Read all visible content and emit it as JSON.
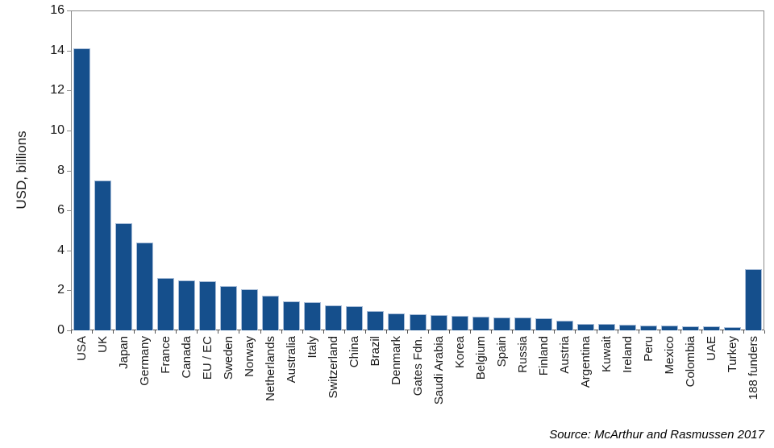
{
  "chart_data": {
    "type": "bar",
    "title": "",
    "xlabel": "",
    "ylabel": "USD, billions",
    "ylim": [
      0,
      16
    ],
    "yticks": [
      16,
      14,
      12,
      10,
      8,
      6,
      4,
      2,
      0
    ],
    "grid": false,
    "legend": "none",
    "bar_color": "#154f8c",
    "bar_edge_color": "#a8bdd8",
    "axis_color": "#8a8a8a",
    "categories": [
      "USA",
      "UK",
      "Japan",
      "Germany",
      "France",
      "Canada",
      "EU / EC",
      "Sweden",
      "Norway",
      "Netherlands",
      "Australia",
      "Italy",
      "Switzerland",
      "China",
      "Brazil",
      "Denmark",
      "Gates Fdn.",
      "Saudi Arabia",
      "Korea",
      "Belgium",
      "Spain",
      "Russia",
      "Finland",
      "Austria",
      "Argentina",
      "Kuwait",
      "Ireland",
      "Peru",
      "Mexico",
      "Colombia",
      "UAE",
      "Turkey",
      "188 funders"
    ],
    "values": [
      14.1,
      7.5,
      5.35,
      4.4,
      2.6,
      2.5,
      2.45,
      2.2,
      2.05,
      1.75,
      1.45,
      1.4,
      1.25,
      1.2,
      0.95,
      0.85,
      0.8,
      0.75,
      0.72,
      0.7,
      0.66,
      0.63,
      0.6,
      0.47,
      0.33,
      0.31,
      0.3,
      0.26,
      0.23,
      0.21,
      0.19,
      0.15,
      3.07
    ],
    "source": "Source: McArthur and Rasmussen 2017"
  }
}
